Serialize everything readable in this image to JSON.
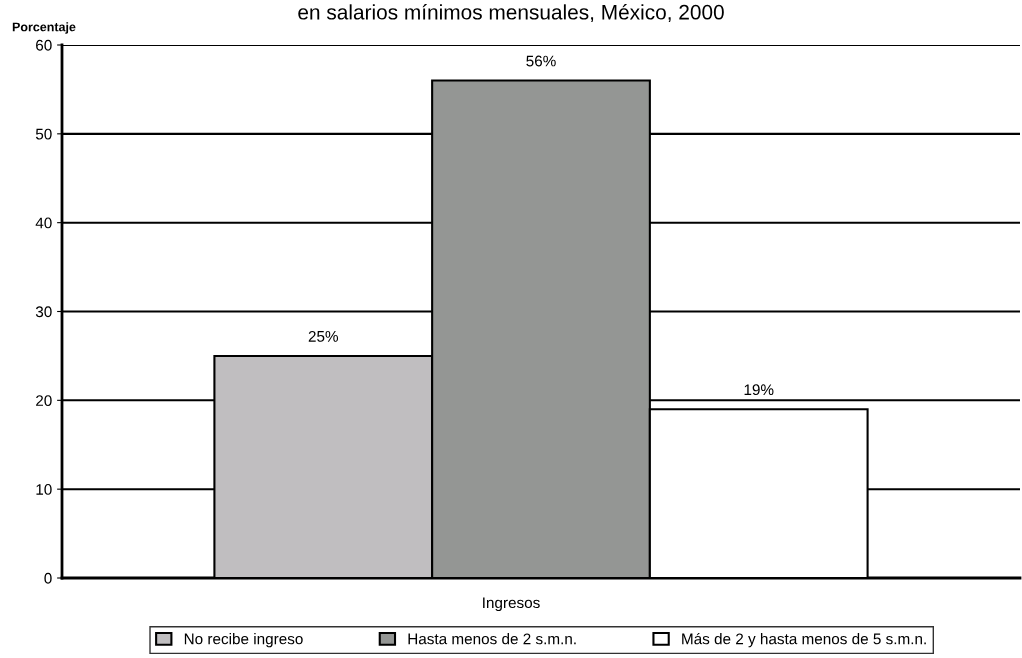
{
  "chart_data": {
    "type": "bar",
    "title": "en salarios mínimos mensuales, México, 2000",
    "xlabel": "Ingresos",
    "ylabel": "Porcentaje",
    "categories": [
      null
    ],
    "series": [
      {
        "name": "No recibe ingreso",
        "color": "#c0bec0",
        "values": [
          25
        ],
        "value_labels": [
          "25%"
        ]
      },
      {
        "name": "Hasta menos de 2 s.m.n.",
        "color": "#949694",
        "values": [
          56
        ],
        "value_labels": [
          "56%"
        ]
      },
      {
        "name": "Más de 2 y hasta menos de 5 s.m.n.",
        "color": "#ffffff",
        "values": [
          19
        ],
        "value_labels": [
          "19%"
        ]
      }
    ],
    "ylim": [
      0,
      60
    ],
    "yticks": [
      0,
      10,
      20,
      30,
      40,
      50,
      60
    ],
    "grid": "y",
    "legend": "bottom"
  }
}
